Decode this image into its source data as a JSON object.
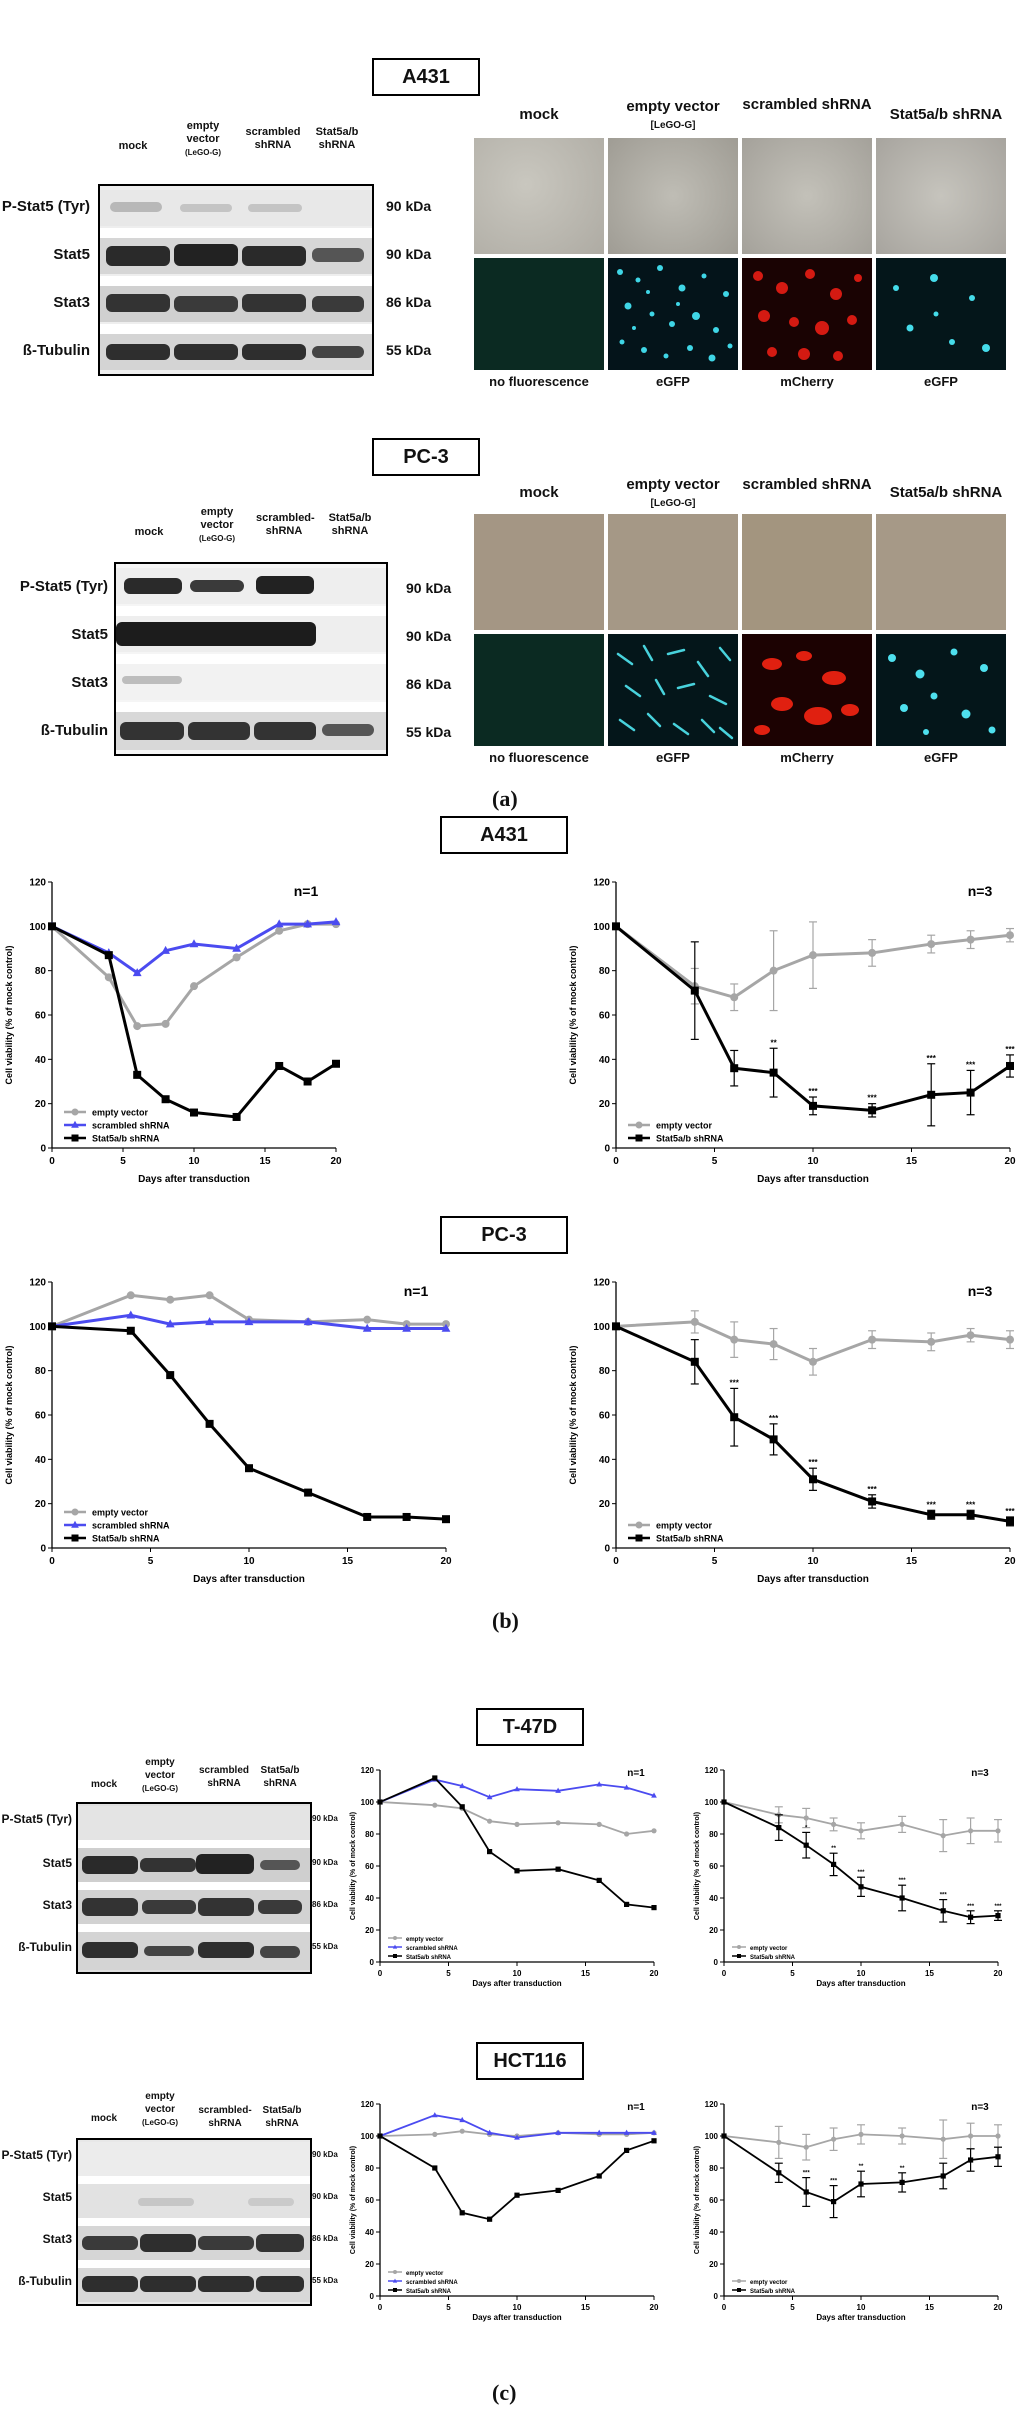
{
  "labels": {
    "a": "(a)",
    "b": "(b)",
    "c": "(c)"
  },
  "panel_a": {
    "a431": {
      "title": "A431",
      "blot_columns": [
        "mock",
        "empty vector",
        "(LeGO-G)",
        "scrambled shRNA",
        "Stat5a/b shRNA"
      ],
      "rows": [
        {
          "label": "P-Stat5 (Tyr)",
          "kda": "90 kDa"
        },
        {
          "label": "Stat5",
          "kda": "90 kDa"
        },
        {
          "label": "Stat3",
          "kda": "86 kDa"
        },
        {
          "label": "ß-Tubulin",
          "kda": "55 kDa"
        }
      ],
      "micro_headers": [
        "mock",
        "empty vector",
        "[LeGO-G]",
        "scrambled shRNA",
        "Stat5a/b shRNA"
      ],
      "micro_captions": [
        "no fluorescence",
        "eGFP",
        "mCherry",
        "eGFP"
      ]
    },
    "pc3": {
      "title": "PC-3",
      "blot_columns": [
        "mock",
        "empty vector",
        "(LeGO-G)",
        "scrambled-shRNA",
        "Stat5a/b shRNA"
      ],
      "rows": [
        {
          "label": "P-Stat5 (Tyr)",
          "kda": "90 kDa"
        },
        {
          "label": "Stat5",
          "kda": "90 kDa"
        },
        {
          "label": "Stat3",
          "kda": "86 kDa"
        },
        {
          "label": "ß-Tubulin",
          "kda": "55 kDa"
        }
      ],
      "micro_headers": [
        "mock",
        "empty vector",
        "[LeGO-G]",
        "scrambled shRNA",
        "Stat5a/b shRNA"
      ],
      "micro_captions": [
        "no fluorescence",
        "eGFP",
        "mCherry",
        "eGFP"
      ]
    }
  },
  "panel_b": {
    "a431_title": "A431",
    "pc3_title": "PC-3"
  },
  "panel_c": {
    "t47d": {
      "title": "T-47D",
      "blot_columns": [
        "mock",
        "empty vector",
        "(LeGO-G)",
        "scrambled shRNA",
        "Stat5a/b shRNA"
      ],
      "rows": [
        {
          "label": "P-Stat5 (Tyr)",
          "kda": "90 kDa"
        },
        {
          "label": "Stat5",
          "kda": "90 kDa"
        },
        {
          "label": "Stat3",
          "kda": "86 kDa"
        },
        {
          "label": "ß-Tubulin",
          "kda": "55 kDa"
        }
      ]
    },
    "hct116": {
      "title": "HCT116",
      "blot_columns": [
        "mock",
        "empty vector",
        "(LeGO-G)",
        "scrambled-shRNA",
        "Stat5a/b shRNA"
      ],
      "rows": [
        {
          "label": "P-Stat5 (Tyr)",
          "kda": "90 kDa"
        },
        {
          "label": "Stat5",
          "kda": "90 kDa"
        },
        {
          "label": "Stat3",
          "kda": "86 kDa"
        },
        {
          "label": "ß-Tubulin",
          "kda": "55 kDa"
        }
      ]
    }
  },
  "colors": {
    "empty": "#a6a6a6",
    "scrambled": "#4b4bf0",
    "stat5": "#000000"
  },
  "chart_data": [
    {
      "id": "a431_n1",
      "type": "line",
      "annotation": "n=1",
      "xlabel": "Days after transduction",
      "ylabel": "Cell viability (% of mock control)",
      "xlim": [
        0,
        20
      ],
      "ylim": [
        0,
        120
      ],
      "xticks": [
        0,
        5,
        10,
        15,
        20
      ],
      "yticks": [
        0,
        20,
        40,
        60,
        80,
        100,
        120
      ],
      "series": [
        {
          "name": "empty vector",
          "color": "#a6a6a6",
          "marker": "circle",
          "x": [
            0,
            4,
            6,
            8,
            10,
            13,
            16,
            18,
            20
          ],
          "y": [
            100,
            77,
            55,
            56,
            73,
            86,
            98,
            101,
            101
          ]
        },
        {
          "name": "scrambled shRNA",
          "color": "#4b4bf0",
          "marker": "triangle",
          "x": [
            0,
            4,
            6,
            8,
            10,
            13,
            16,
            18,
            20
          ],
          "y": [
            100,
            88,
            79,
            89,
            92,
            90,
            101,
            101,
            102
          ]
        },
        {
          "name": "Stat5a/b shRNA",
          "color": "#000000",
          "marker": "square",
          "x": [
            0,
            4,
            6,
            8,
            10,
            13,
            16,
            18,
            20
          ],
          "y": [
            100,
            87,
            33,
            22,
            16,
            14,
            37,
            30,
            38
          ]
        }
      ]
    },
    {
      "id": "a431_n3",
      "type": "line",
      "annotation": "n=3",
      "xlabel": "Days after transduction",
      "ylabel": "Cell viability (% of mock control)",
      "xlim": [
        0,
        20
      ],
      "ylim": [
        0,
        120
      ],
      "xticks": [
        0,
        5,
        10,
        15,
        20
      ],
      "yticks": [
        0,
        20,
        40,
        60,
        80,
        100,
        120
      ],
      "series": [
        {
          "name": "empty vector",
          "color": "#a6a6a6",
          "marker": "circle",
          "x": [
            0,
            4,
            6,
            8,
            10,
            13,
            16,
            18,
            20
          ],
          "y": [
            100,
            73,
            68,
            80,
            87,
            88,
            92,
            94,
            96
          ],
          "err": [
            0,
            8,
            6,
            18,
            15,
            6,
            4,
            4,
            3
          ]
        },
        {
          "name": "Stat5a/b shRNA",
          "color": "#000000",
          "marker": "square",
          "x": [
            0,
            4,
            6,
            8,
            10,
            13,
            16,
            18,
            20
          ],
          "y": [
            100,
            71,
            36,
            34,
            19,
            17,
            24,
            25,
            37
          ],
          "err": [
            0,
            22,
            8,
            11,
            4,
            3,
            14,
            10,
            5
          ],
          "stars": [
            "",
            "",
            "",
            "**",
            "***",
            "***",
            "***",
            "***",
            "***"
          ]
        }
      ]
    },
    {
      "id": "pc3_n1",
      "type": "line",
      "annotation": "n=1",
      "xlabel": "Days after transduction",
      "ylabel": "Cell viability (% of mock control)",
      "xlim": [
        0,
        20
      ],
      "ylim": [
        0,
        120
      ],
      "xticks": [
        0,
        5,
        10,
        15,
        20
      ],
      "yticks": [
        0,
        20,
        40,
        60,
        80,
        100,
        120
      ],
      "series": [
        {
          "name": "empty vector",
          "color": "#a6a6a6",
          "marker": "circle",
          "x": [
            0,
            4,
            6,
            8,
            10,
            13,
            16,
            18,
            20
          ],
          "y": [
            100,
            114,
            112,
            114,
            103,
            102,
            103,
            101,
            101
          ]
        },
        {
          "name": "scrambled shRNA",
          "color": "#4b4bf0",
          "marker": "triangle",
          "x": [
            0,
            4,
            6,
            8,
            10,
            13,
            16,
            18,
            20
          ],
          "y": [
            100,
            105,
            101,
            102,
            102,
            102,
            99,
            99,
            99
          ]
        },
        {
          "name": "Stat5a/b shRNA",
          "color": "#000000",
          "marker": "square",
          "x": [
            0,
            4,
            6,
            8,
            10,
            13,
            16,
            18,
            20
          ],
          "y": [
            100,
            98,
            78,
            56,
            36,
            25,
            14,
            14,
            13
          ]
        }
      ]
    },
    {
      "id": "pc3_n3",
      "type": "line",
      "annotation": "n=3",
      "xlabel": "Days after transduction",
      "ylabel": "Cell viability (% of mock control)",
      "xlim": [
        0,
        20
      ],
      "ylim": [
        0,
        120
      ],
      "xticks": [
        0,
        5,
        10,
        15,
        20
      ],
      "yticks": [
        0,
        20,
        40,
        60,
        80,
        100,
        120
      ],
      "series": [
        {
          "name": "empty vector",
          "color": "#a6a6a6",
          "marker": "circle",
          "x": [
            0,
            4,
            6,
            8,
            10,
            13,
            16,
            18,
            20
          ],
          "y": [
            100,
            102,
            94,
            92,
            84,
            94,
            93,
            96,
            94
          ],
          "err": [
            0,
            5,
            8,
            7,
            6,
            4,
            4,
            3,
            4
          ]
        },
        {
          "name": "Stat5a/b shRNA",
          "color": "#000000",
          "marker": "square",
          "x": [
            0,
            4,
            6,
            8,
            10,
            13,
            16,
            18,
            20
          ],
          "y": [
            100,
            84,
            59,
            49,
            31,
            21,
            15,
            15,
            12
          ],
          "err": [
            0,
            10,
            13,
            7,
            5,
            3,
            2,
            2,
            2
          ],
          "stars": [
            "",
            "",
            "***",
            "***",
            "***",
            "***",
            "***",
            "***",
            "***"
          ]
        }
      ]
    },
    {
      "id": "t47d_n1",
      "type": "line",
      "annotation": "n=1",
      "xlabel": "Days after transduction",
      "ylabel": "Cell viability (% of mock control)",
      "xlim": [
        0,
        20
      ],
      "ylim": [
        0,
        120
      ],
      "xticks": [
        0,
        5,
        10,
        15,
        20
      ],
      "yticks": [
        0,
        20,
        40,
        60,
        80,
        100,
        120
      ],
      "series": [
        {
          "name": "empty vector",
          "color": "#a6a6a6",
          "marker": "circle",
          "x": [
            0,
            4,
            6,
            8,
            10,
            13,
            16,
            18,
            20
          ],
          "y": [
            100,
            98,
            96,
            88,
            86,
            87,
            86,
            80,
            82
          ]
        },
        {
          "name": "scrambled shRNA",
          "color": "#4b4bf0",
          "marker": "triangle",
          "x": [
            0,
            4,
            6,
            8,
            10,
            13,
            16,
            18,
            20
          ],
          "y": [
            100,
            114,
            110,
            103,
            108,
            107,
            111,
            109,
            104
          ]
        },
        {
          "name": "Stat5a/b shRNA",
          "color": "#000000",
          "marker": "square",
          "x": [
            0,
            4,
            6,
            8,
            10,
            13,
            16,
            18,
            20
          ],
          "y": [
            100,
            115,
            97,
            69,
            57,
            58,
            51,
            36,
            34
          ]
        }
      ]
    },
    {
      "id": "t47d_n3",
      "type": "line",
      "annotation": "n=3",
      "xlabel": "Days after transduction",
      "ylabel": "Cell viability (% of mock control)",
      "xlim": [
        0,
        20
      ],
      "ylim": [
        0,
        120
      ],
      "xticks": [
        0,
        5,
        10,
        15,
        20
      ],
      "yticks": [
        0,
        20,
        40,
        60,
        80,
        100,
        120
      ],
      "series": [
        {
          "name": "empty vector",
          "color": "#a6a6a6",
          "marker": "circle",
          "x": [
            0,
            4,
            6,
            8,
            10,
            13,
            16,
            18,
            20
          ],
          "y": [
            100,
            92,
            90,
            86,
            82,
            86,
            79,
            82,
            82
          ],
          "err": [
            0,
            5,
            6,
            4,
            5,
            5,
            10,
            8,
            7
          ]
        },
        {
          "name": "Stat5a/b shRNA",
          "color": "#000000",
          "marker": "square",
          "x": [
            0,
            4,
            6,
            8,
            10,
            13,
            16,
            18,
            20
          ],
          "y": [
            100,
            84,
            73,
            61,
            47,
            40,
            32,
            28,
            29
          ],
          "err": [
            0,
            8,
            8,
            7,
            6,
            8,
            7,
            4,
            3
          ],
          "stars": [
            "",
            "",
            "*",
            "**",
            "***",
            "***",
            "***",
            "***",
            "***"
          ]
        }
      ]
    },
    {
      "id": "hct116_n1",
      "type": "line",
      "annotation": "n=1",
      "xlabel": "Days after transduction",
      "ylabel": "Cell viability (% of mock control)",
      "xlim": [
        0,
        20
      ],
      "ylim": [
        0,
        120
      ],
      "xticks": [
        0,
        5,
        10,
        15,
        20
      ],
      "yticks": [
        0,
        20,
        40,
        60,
        80,
        100,
        120
      ],
      "series": [
        {
          "name": "empty vector",
          "color": "#a6a6a6",
          "marker": "circle",
          "x": [
            0,
            4,
            6,
            8,
            10,
            13,
            16,
            18,
            20
          ],
          "y": [
            100,
            101,
            103,
            101,
            100,
            102,
            101,
            101,
            102
          ]
        },
        {
          "name": "scrambled shRNA",
          "color": "#4b4bf0",
          "marker": "triangle",
          "x": [
            0,
            4,
            6,
            8,
            10,
            13,
            16,
            18,
            20
          ],
          "y": [
            100,
            113,
            110,
            102,
            99,
            102,
            102,
            102,
            102
          ]
        },
        {
          "name": "Stat5a/b shRNA",
          "color": "#000000",
          "marker": "square",
          "x": [
            0,
            4,
            6,
            8,
            10,
            13,
            16,
            18,
            20
          ],
          "y": [
            100,
            80,
            52,
            48,
            63,
            66,
            75,
            91,
            97
          ]
        }
      ]
    },
    {
      "id": "hct116_n3",
      "type": "line",
      "annotation": "n=3",
      "xlabel": "Days after transduction",
      "ylabel": "Cell viability (% of mock control)",
      "xlim": [
        0,
        20
      ],
      "ylim": [
        0,
        120
      ],
      "xticks": [
        0,
        5,
        10,
        15,
        20
      ],
      "yticks": [
        0,
        20,
        40,
        60,
        80,
        100,
        120
      ],
      "series": [
        {
          "name": "empty vector",
          "color": "#a6a6a6",
          "marker": "circle",
          "x": [
            0,
            4,
            6,
            8,
            10,
            13,
            16,
            18,
            20
          ],
          "y": [
            100,
            96,
            93,
            98,
            101,
            100,
            98,
            100,
            100
          ],
          "err": [
            0,
            10,
            8,
            7,
            6,
            5,
            12,
            8,
            7
          ]
        },
        {
          "name": "Stat5a/b shRNA",
          "color": "#000000",
          "marker": "square",
          "x": [
            0,
            4,
            6,
            8,
            10,
            13,
            16,
            18,
            20
          ],
          "y": [
            100,
            77,
            65,
            59,
            70,
            71,
            75,
            85,
            87
          ],
          "err": [
            0,
            6,
            9,
            10,
            8,
            6,
            8,
            7,
            6
          ],
          "stars": [
            "",
            "",
            "***",
            "***",
            "**",
            "**",
            "",
            "",
            ""
          ]
        }
      ]
    }
  ]
}
